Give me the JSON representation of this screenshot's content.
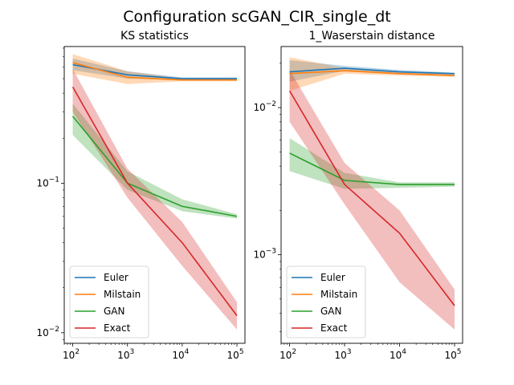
{
  "figure": {
    "title": "Configuration scGAN_CIR_single_dt"
  },
  "chart_data": [
    {
      "type": "line",
      "title": "KS statistics",
      "xscale": "log",
      "yscale": "log",
      "x": [
        100,
        1000,
        10000,
        100000
      ],
      "xlim": [
        70,
        140000
      ],
      "ylim": [
        0.0085,
        0.82
      ],
      "xticks": [
        {
          "base": "10",
          "exp": "2",
          "value": 100
        },
        {
          "base": "10",
          "exp": "3",
          "value": 1000
        },
        {
          "base": "10",
          "exp": "4",
          "value": 10000
        },
        {
          "base": "10",
          "exp": "5",
          "value": 100000
        }
      ],
      "yticks": [
        {
          "base": "10",
          "exp": "−1",
          "value": 0.1
        },
        {
          "base": "10",
          "exp": "−2",
          "value": 0.01
        }
      ],
      "legend": "lower-left",
      "grid": false,
      "series": [
        {
          "name": "Euler",
          "color": "#1f77b4",
          "values": [
            0.62,
            0.53,
            0.5,
            0.5
          ],
          "lower": [
            0.57,
            0.5,
            0.49,
            0.49
          ],
          "upper": [
            0.68,
            0.56,
            0.51,
            0.51
          ]
        },
        {
          "name": "Milstain",
          "color": "#ff7f0e",
          "values": [
            0.64,
            0.51,
            0.49,
            0.49
          ],
          "lower": [
            0.54,
            0.46,
            0.48,
            0.48
          ],
          "upper": [
            0.73,
            0.56,
            0.5,
            0.5
          ]
        },
        {
          "name": "GAN",
          "color": "#2ca02c",
          "values": [
            0.28,
            0.1,
            0.07,
            0.06
          ],
          "lower": [
            0.21,
            0.09,
            0.065,
            0.058
          ],
          "upper": [
            0.34,
            0.12,
            0.078,
            0.062
          ]
        },
        {
          "name": "Exact",
          "color": "#d62728",
          "values": [
            0.44,
            0.1,
            0.04,
            0.013
          ],
          "lower": [
            0.3,
            0.08,
            0.028,
            0.0105
          ],
          "upper": [
            0.58,
            0.125,
            0.055,
            0.016
          ]
        }
      ]
    },
    {
      "type": "line",
      "title": "1_Waserstain distance",
      "xscale": "log",
      "yscale": "log",
      "x": [
        100,
        1000,
        10000,
        100000
      ],
      "xlim": [
        70,
        140000
      ],
      "ylim": [
        0.00025,
        0.026
      ],
      "xticks": [
        {
          "base": "10",
          "exp": "2",
          "value": 100
        },
        {
          "base": "10",
          "exp": "3",
          "value": 1000
        },
        {
          "base": "10",
          "exp": "4",
          "value": 10000
        },
        {
          "base": "10",
          "exp": "5",
          "value": 100000
        }
      ],
      "yticks": [
        {
          "base": "10",
          "exp": "−2",
          "value": 0.01
        },
        {
          "base": "10",
          "exp": "−3",
          "value": 0.001
        }
      ],
      "legend": "lower-left",
      "grid": false,
      "series": [
        {
          "name": "Euler",
          "color": "#1f77b4",
          "values": [
            0.0175,
            0.0185,
            0.0175,
            0.017
          ],
          "lower": [
            0.015,
            0.0178,
            0.017,
            0.0167
          ],
          "upper": [
            0.021,
            0.0192,
            0.018,
            0.0173
          ]
        },
        {
          "name": "Milstain",
          "color": "#ff7f0e",
          "values": [
            0.017,
            0.0178,
            0.017,
            0.0165
          ],
          "lower": [
            0.013,
            0.017,
            0.0165,
            0.0162
          ],
          "upper": [
            0.022,
            0.0185,
            0.0175,
            0.0168
          ]
        },
        {
          "name": "GAN",
          "color": "#2ca02c",
          "values": [
            0.0049,
            0.0032,
            0.003,
            0.003
          ],
          "lower": [
            0.0037,
            0.0028,
            0.00285,
            0.0029
          ],
          "upper": [
            0.0062,
            0.0036,
            0.0031,
            0.0031
          ]
        },
        {
          "name": "Exact",
          "color": "#d62728",
          "values": [
            0.013,
            0.003,
            0.0014,
            0.00045
          ],
          "lower": [
            0.008,
            0.0022,
            0.00065,
            0.00031
          ],
          "upper": [
            0.018,
            0.0042,
            0.002,
            0.00058
          ]
        }
      ]
    }
  ]
}
